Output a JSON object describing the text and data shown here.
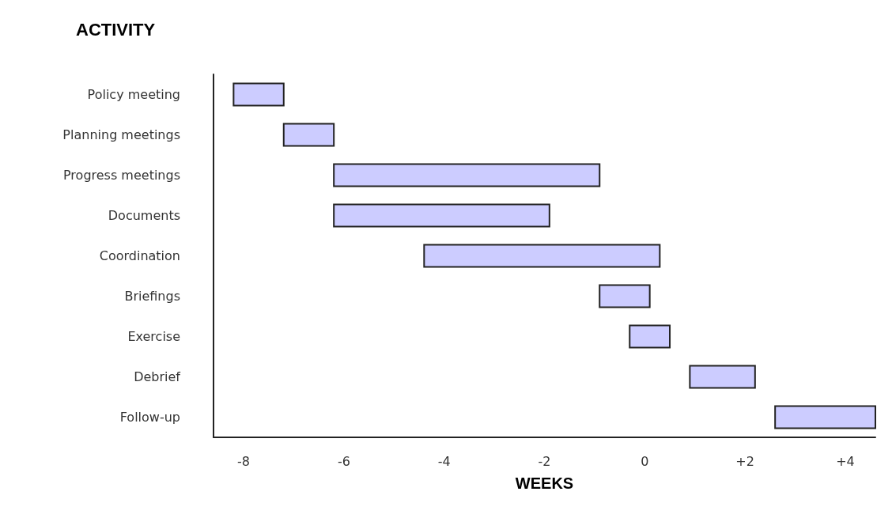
{
  "chart_data": {
    "type": "bar",
    "orientation": "horizontal",
    "ylabel": "ACTIVITY",
    "xlabel": "WEEKS",
    "categories": [
      "Policy meeting",
      "Planning meetings",
      "Progress meetings",
      "Documents",
      "Coordination",
      "Briefings",
      "Exercise",
      "Debrief",
      "Follow-up"
    ],
    "base": [
      -8.2,
      -7.2,
      -6.2,
      -6.2,
      -4.4,
      -0.9,
      -0.3,
      0.9,
      2.6
    ],
    "values": [
      1.0,
      1.0,
      5.3,
      4.3,
      4.7,
      1.0,
      0.8,
      1.3,
      2.0
    ],
    "color": "#ccccff",
    "xlim": [
      -8.6,
      4.6
    ],
    "xticks": [
      -8,
      -6,
      -4,
      -2,
      0,
      {
        "value": 2,
        "label": "+2"
      },
      {
        "value": 4,
        "label": "+4"
      }
    ],
    "grid": false
  }
}
